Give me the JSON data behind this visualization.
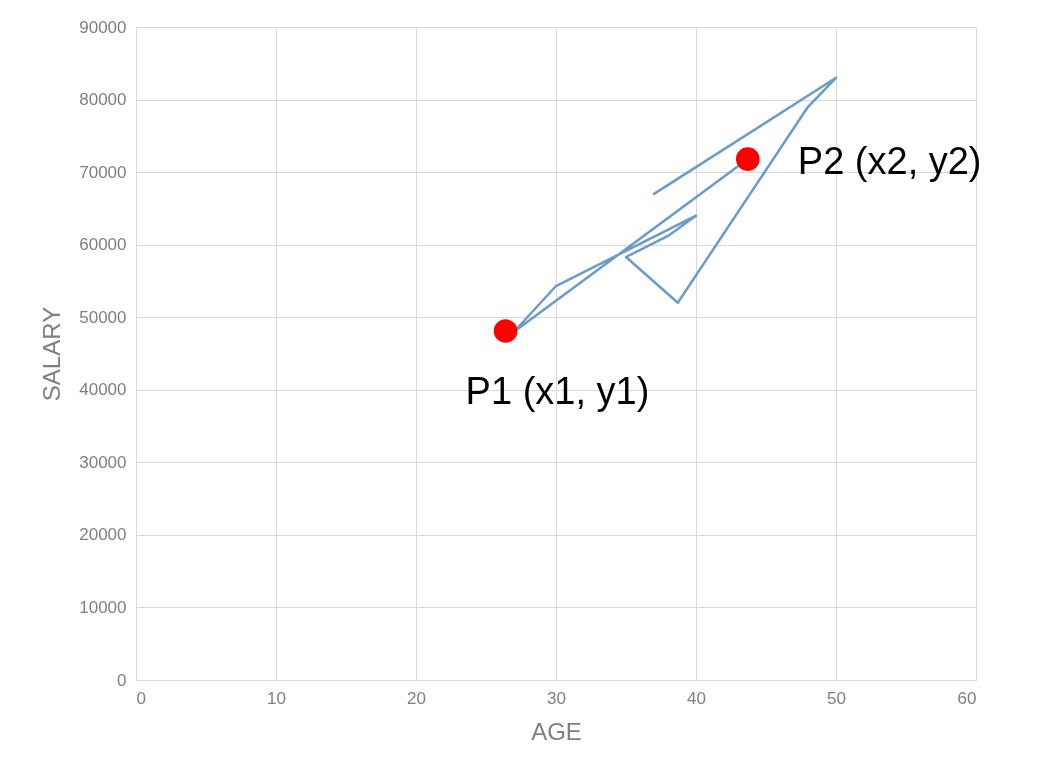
{
  "chart_data": {
    "type": "line",
    "xlabel": "AGE",
    "ylabel": "SALARY",
    "xlim": [
      0,
      60
    ],
    "xticks": [
      0,
      10,
      20,
      30,
      40,
      50,
      60
    ],
    "ylim": [
      0,
      90000
    ],
    "yticks": [
      0,
      10000,
      20000,
      30000,
      40000,
      50000,
      60000,
      70000,
      80000,
      90000
    ],
    "grid": true,
    "series": [
      {
        "marker": "none",
        "color": "#6a9bcc",
        "x": [
          37,
          50,
          48,
          38.7,
          35,
          38,
          40,
          30,
          27,
          43
        ],
        "values": [
          67000,
          83000,
          79000,
          52000,
          58300,
          61200,
          64000,
          54300,
          48000,
          70800
        ]
      },
      {
        "type": "scatter",
        "marker": "circle",
        "color": "#ff0000",
        "x": [
          26.4,
          43.7
        ],
        "values": [
          48100,
          71800
        ]
      }
    ],
    "annotations": [
      {
        "text": "P1 (x1, y1)",
        "x": 26.4,
        "y": 48100
      },
      {
        "text": "P2 (x2, y2)",
        "x": 43.7,
        "y": 71800
      }
    ]
  }
}
